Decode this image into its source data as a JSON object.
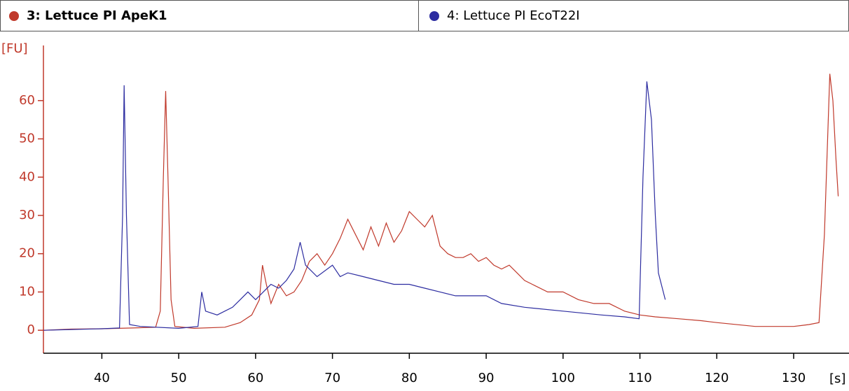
{
  "chart_data": {
    "type": "line",
    "x_label": "[s]",
    "y_label": "[FU]",
    "xlim": [
      32.4,
      137.2
    ],
    "ylim": [
      -6,
      74.4
    ],
    "xticks": [
      40,
      50,
      60,
      70,
      80,
      90,
      100,
      110,
      120,
      130
    ],
    "yticks": [
      0,
      10,
      20,
      30,
      40,
      50,
      60
    ],
    "series": [
      {
        "name": "3: Lettuce PI ApeK1",
        "color": "#c0392b",
        "x": [
          32.4,
          36,
          40,
          44,
          47,
          47.6,
          48.0,
          48.3,
          48.6,
          49.0,
          49.5,
          52,
          56,
          58,
          59.5,
          60.5,
          60.9,
          61.4,
          62,
          63,
          64,
          65,
          66,
          67,
          68,
          69,
          70,
          71,
          72,
          73,
          74,
          75,
          76,
          77,
          78,
          79,
          80,
          81,
          82,
          83,
          84,
          85,
          86,
          87,
          88,
          89,
          90,
          91,
          92,
          93,
          94,
          95,
          96,
          98,
          100,
          102,
          104,
          106,
          108,
          110,
          112,
          115,
          118,
          120,
          125,
          130,
          132,
          133.3,
          134,
          134.7,
          135.1,
          135.5,
          135.8
        ],
        "values": [
          0,
          0.3,
          0.4,
          0.6,
          0.8,
          5,
          40,
          62.5,
          40,
          8,
          1,
          0.5,
          0.8,
          2,
          4,
          8,
          17,
          12,
          7,
          12,
          9,
          10,
          13,
          18,
          20,
          17,
          20,
          24,
          29,
          25,
          21,
          27,
          22,
          28,
          23,
          26,
          31,
          29,
          27,
          30,
          22,
          20,
          19,
          19,
          20,
          18,
          19,
          17,
          16,
          17,
          15,
          13,
          12,
          10,
          10,
          8,
          7,
          7,
          5,
          4,
          3.5,
          3,
          2.5,
          2,
          1,
          1,
          1.5,
          2,
          25,
          67,
          60,
          45,
          35
        ]
      },
      {
        "name": "4: Lettuce PI EcoT22I",
        "color": "#2c2ca0",
        "x": [
          32.4,
          36,
          40,
          42.3,
          42.7,
          42.9,
          43.2,
          43.6,
          45,
          50,
          52.5,
          53,
          53.5,
          55,
          57,
          58,
          59,
          60,
          61,
          62,
          63,
          64,
          65,
          65.8,
          66.5,
          67,
          68,
          70,
          71,
          72,
          74,
          76,
          78,
          80,
          82,
          84,
          86,
          88,
          90,
          92,
          95,
          100,
          105,
          108,
          109.9,
          110.4,
          110.9,
          111.5,
          112.0,
          112.4,
          113.3
        ],
        "values": [
          0,
          0.2,
          0.4,
          0.6,
          30,
          64,
          30,
          1.5,
          1,
          0.5,
          1,
          10,
          5,
          4,
          6,
          8,
          10,
          8,
          10,
          12,
          11,
          13,
          16,
          23,
          17,
          16,
          14,
          17,
          14,
          15,
          14,
          13,
          12,
          12,
          11,
          10,
          9,
          9,
          9,
          7,
          6,
          5,
          4,
          3.5,
          3,
          40,
          65,
          55,
          30,
          15,
          8
        ]
      }
    ]
  }
}
